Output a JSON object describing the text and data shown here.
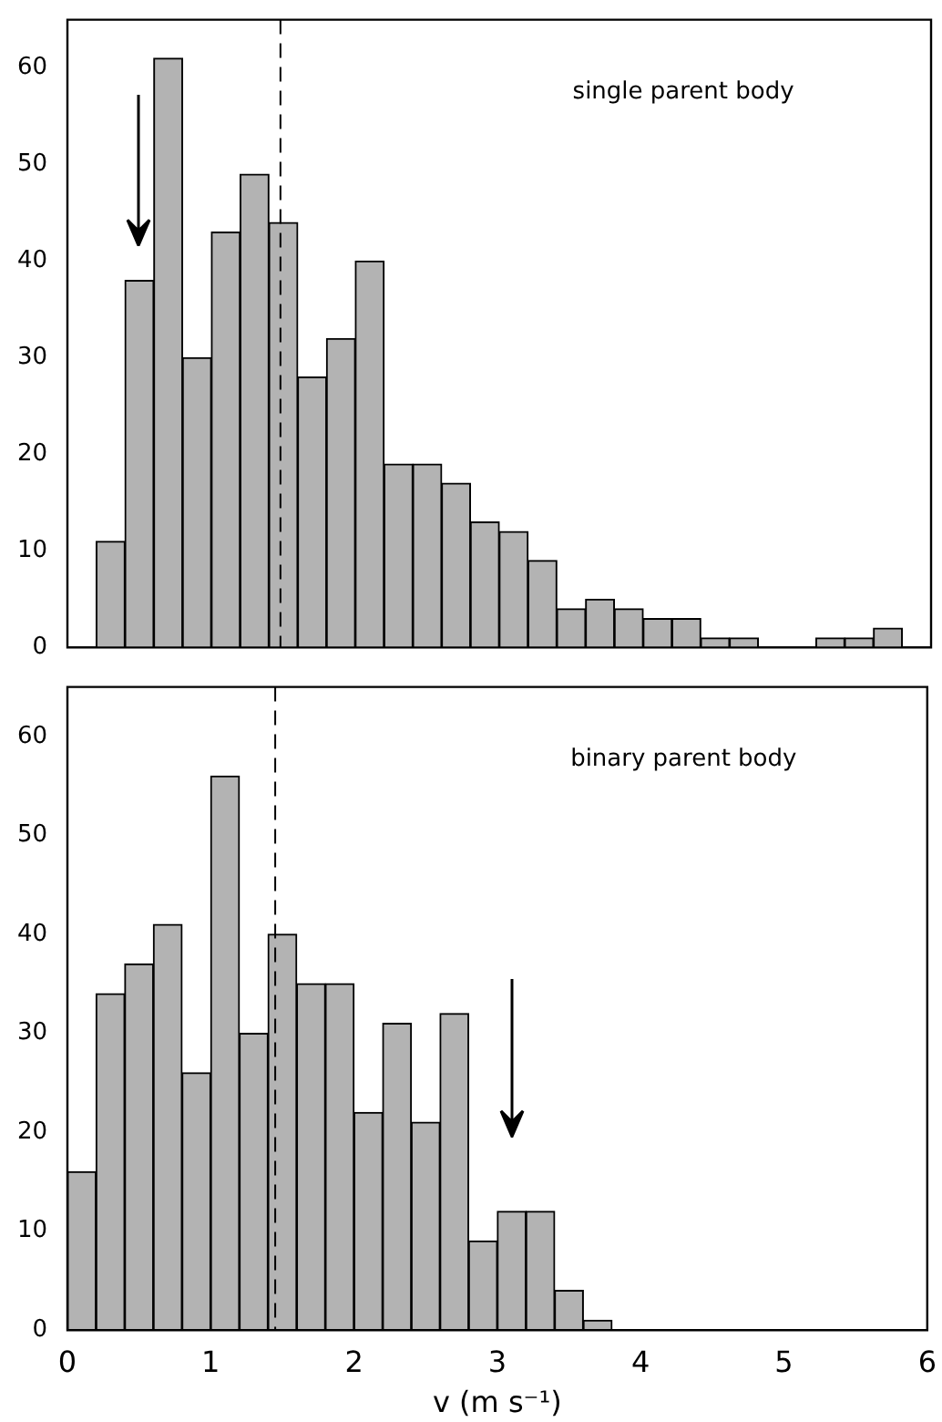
{
  "chart_data": [
    {
      "type": "histogram",
      "ylabel": null,
      "bins": [
        0.2,
        0.4,
        0.6,
        0.8,
        1.0,
        1.2,
        1.4,
        1.6,
        1.8,
        2.0,
        2.2,
        2.4,
        2.6,
        2.8,
        3.0,
        3.2,
        3.4,
        3.6,
        3.8,
        4.0,
        4.2,
        4.4,
        4.6,
        4.8,
        5.0,
        5.2,
        5.4,
        5.6,
        5.8
      ],
      "values": [
        11,
        38,
        61,
        30,
        43,
        49,
        44,
        28,
        32,
        40,
        19,
        19,
        17,
        13,
        12,
        9,
        4,
        5,
        4,
        3,
        3,
        1,
        1,
        0,
        0,
        1,
        1,
        2
      ],
      "color": "#b3b3b3",
      "xlim": [
        0,
        6
      ],
      "xticks": [
        0,
        1,
        2,
        3,
        4,
        5,
        6
      ],
      "ylim": [
        0,
        65
      ],
      "yticks": [
        0,
        10,
        20,
        30,
        40,
        50,
        60
      ],
      "tick_labels": "y",
      "grid": false,
      "legend": false,
      "annotations": [
        "single parent body"
      ],
      "ref_lines": [
        {
          "axis": "x",
          "value": 1.48,
          "color": "#000000",
          "line_style": "dashed"
        }
      ]
    },
    {
      "type": "histogram",
      "xlabel": "v (m s⁻¹)",
      "bins": [
        0,
        0.2,
        0.4,
        0.6,
        0.8,
        1.0,
        1.2,
        1.4,
        1.6,
        1.8,
        2.0,
        2.2,
        2.4,
        2.6,
        2.8,
        3.0,
        3.2,
        3.4,
        3.6,
        3.8
      ],
      "values": [
        16,
        34,
        37,
        41,
        26,
        56,
        30,
        40,
        35,
        35,
        22,
        31,
        21,
        32,
        9,
        12,
        12,
        4,
        1
      ],
      "color": "#b3b3b3",
      "xlim": [
        0,
        6
      ],
      "xticks": [
        0,
        1,
        2,
        3,
        4,
        5,
        6
      ],
      "ylim": [
        0,
        65
      ],
      "yticks": [
        0,
        10,
        20,
        30,
        40,
        50,
        60
      ],
      "grid": false,
      "legend": false,
      "annotations": [
        "binary parent body"
      ],
      "ref_lines": [
        {
          "axis": "x",
          "value": 1.45,
          "color": "#000000",
          "line_style": "dashed"
        }
      ]
    }
  ]
}
